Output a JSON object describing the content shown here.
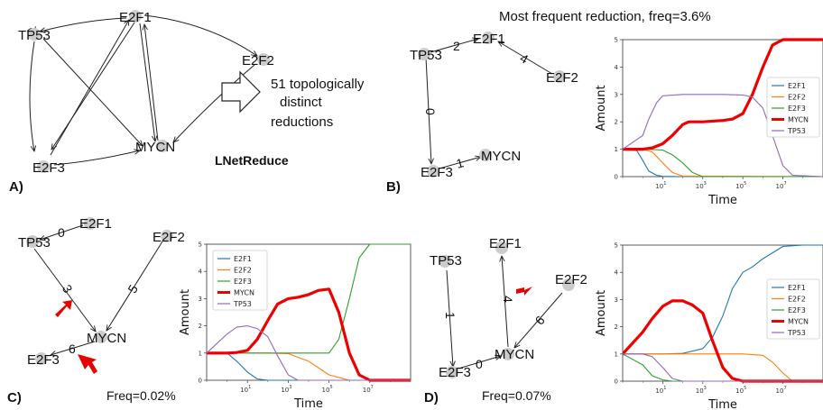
{
  "panelA": {
    "letter": "A)",
    "nodes": [
      "E2F1",
      "TP53",
      "E2F2",
      "MYCN",
      "E2F3"
    ],
    "note": "51 topologically distinct reductions",
    "tool": "LNetReduce"
  },
  "panelB": {
    "letter": "B)",
    "title": "Most frequent reduction, freq=3.6%",
    "nodes": [
      "TP53",
      "E2F1",
      "E2F2",
      "E2F3",
      "MYCN"
    ],
    "edge_labels": [
      "2",
      "4",
      "0",
      "1"
    ]
  },
  "panelC": {
    "letter": "C)",
    "freq": "Freq=0.02%",
    "nodes": [
      "TP53",
      "E2F1",
      "E2F2",
      "MYCN",
      "E2F3"
    ],
    "edge_labels": [
      "0",
      "3",
      "5",
      "6"
    ]
  },
  "panelD": {
    "letter": "D)",
    "freq": "Freq=0.07%",
    "nodes": [
      "E2F1",
      "TP53",
      "E2F2",
      "MYCN",
      "E2F3"
    ],
    "edge_labels": [
      "4",
      "1",
      "6",
      "0"
    ]
  },
  "colors": {
    "E2F1": "#1f77b4",
    "E2F2": "#ff7f0e",
    "E2F3": "#2ca02c",
    "MYCN": "#ee0000",
    "TP53": "#9467bd",
    "node": "#cccccc",
    "arrow_marker": "#e60000"
  },
  "chart_data": [
    {
      "id": "B",
      "type": "line",
      "xscale": "log",
      "xlim": [
        0.1,
        1000000000
      ],
      "ylim": [
        0,
        5
      ],
      "xlabel": "Time",
      "ylabel": "Amount",
      "xticks": [
        "10^1",
        "10^3",
        "10^5",
        "10^7"
      ],
      "yticks": [
        "0",
        "1",
        "2",
        "3",
        "4",
        "5"
      ],
      "legend": "right",
      "series": [
        {
          "name": "E2F1",
          "x": [
            0.1,
            0.5,
            1,
            2,
            5,
            10,
            100,
            1000000000.0
          ],
          "y": [
            1,
            0.95,
            0.6,
            0.2,
            0.05,
            0.01,
            0,
            0
          ]
        },
        {
          "name": "E2F2",
          "x": [
            0.1,
            1,
            3,
            10,
            30,
            100,
            1000000000.0
          ],
          "y": [
            1,
            1,
            0.9,
            0.5,
            0.15,
            0.02,
            0
          ]
        },
        {
          "name": "E2F3",
          "x": [
            0.1,
            1,
            10,
            30,
            100,
            300,
            1000,
            1000000000.0
          ],
          "y": [
            1,
            1,
            0.97,
            0.8,
            0.5,
            0.15,
            0,
            0
          ]
        },
        {
          "name": "MYCN",
          "x": [
            0.1,
            1,
            3,
            10,
            30,
            100,
            200,
            1000,
            10000,
            30000,
            100000,
            300000,
            1000000,
            3000000,
            10000000,
            1000000000.0
          ],
          "y": [
            1,
            1,
            1.05,
            1.2,
            1.5,
            1.9,
            2,
            2,
            2.05,
            2.1,
            2.3,
            3,
            4,
            4.8,
            5,
            5
          ]
        },
        {
          "name": "TP53",
          "x": [
            0.1,
            1,
            2,
            5,
            10,
            100,
            10000,
            100000,
            300000,
            1000000,
            3000000,
            10000000,
            30000000,
            1000000000.0
          ],
          "y": [
            1,
            1.5,
            2.1,
            2.7,
            2.95,
            3,
            3,
            2.98,
            2.9,
            2.5,
            1.5,
            0.4,
            0.05,
            0
          ]
        }
      ]
    },
    {
      "id": "C",
      "type": "line",
      "xscale": "log",
      "xlim": [
        0.1,
        1000000000
      ],
      "ylim": [
        0,
        5
      ],
      "xlabel": "Time",
      "ylabel": "Amount",
      "xticks": [
        "10^1",
        "10^3",
        "10^5",
        "10^7"
      ],
      "yticks": [
        "0",
        "1",
        "2",
        "3",
        "4",
        "5"
      ],
      "legend": "top-left",
      "series": [
        {
          "name": "E2F1",
          "x": [
            0.1,
            1,
            3,
            10,
            30,
            100,
            1000000000.0
          ],
          "y": [
            1,
            1,
            0.7,
            0.3,
            0.05,
            0,
            0
          ]
        },
        {
          "name": "E2F2",
          "x": [
            0.1,
            100,
            1000,
            10000,
            100000,
            1000000,
            1000000000.0
          ],
          "y": [
            1,
            1,
            0.98,
            0.7,
            0.2,
            0,
            0
          ]
        },
        {
          "name": "E2F3",
          "x": [
            0.1,
            100000,
            300000,
            1000000,
            3000000,
            10000000,
            1000000000.0
          ],
          "y": [
            1,
            1,
            1.5,
            3,
            4.5,
            5,
            5
          ]
        },
        {
          "name": "MYCN",
          "x": [
            0.1,
            1,
            3,
            10,
            30,
            100,
            300,
            1000,
            3000,
            10000,
            30000,
            100000,
            300000,
            1000000,
            3000000,
            10000000,
            1000000000.0
          ],
          "y": [
            1,
            1,
            1.02,
            1.1,
            1.5,
            2.2,
            2.8,
            3,
            3.05,
            3.15,
            3.3,
            3.35,
            2.5,
            1,
            0.2,
            0,
            0
          ]
        },
        {
          "name": "TP53",
          "x": [
            0.1,
            1,
            3,
            10,
            30,
            100,
            300,
            1000,
            3000,
            1000000000.0
          ],
          "y": [
            1,
            1.7,
            1.95,
            2,
            1.9,
            1.6,
            0.9,
            0.2,
            0,
            0
          ]
        }
      ]
    },
    {
      "id": "D",
      "type": "line",
      "xscale": "log",
      "xlim": [
        0.1,
        1000000000
      ],
      "ylim": [
        0,
        5
      ],
      "xlabel": "Time",
      "ylabel": "Amount",
      "xticks": [
        "10^1",
        "10^3",
        "10^5",
        "10^7"
      ],
      "yticks": [
        "0",
        "1",
        "2",
        "3",
        "4",
        "5"
      ],
      "legend": "right",
      "series": [
        {
          "name": "E2F1",
          "x": [
            0.1,
            10,
            100,
            1000,
            3000,
            10000,
            30000,
            100000,
            300000,
            1000000,
            10000000,
            100000000,
            1000000000.0
          ],
          "y": [
            1,
            1,
            1.02,
            1.2,
            1.6,
            2.4,
            3.4,
            4,
            4.2,
            4.5,
            4.95,
            5,
            5
          ]
        },
        {
          "name": "E2F2",
          "x": [
            0.1,
            100000,
            1000000,
            3000000,
            10000000,
            30000000,
            1000000000.0
          ],
          "y": [
            1,
            1,
            0.95,
            0.7,
            0.3,
            0,
            0
          ]
        },
        {
          "name": "E2F3",
          "x": [
            0.1,
            1,
            3,
            10,
            30,
            1000000000.0
          ],
          "y": [
            1,
            0.6,
            0.2,
            0.05,
            0,
            0
          ]
        },
        {
          "name": "MYCN",
          "x": [
            0.1,
            1,
            3,
            10,
            30,
            100,
            300,
            1000,
            3000,
            10000,
            30000,
            100000,
            300000,
            1000000000.0
          ],
          "y": [
            1,
            1.8,
            2.3,
            2.75,
            2.95,
            2.95,
            2.8,
            2.5,
            1.5,
            0.5,
            0.1,
            0,
            0,
            0
          ]
        },
        {
          "name": "TP53",
          "x": [
            0.1,
            1,
            3,
            10,
            30,
            100,
            1000000000.0
          ],
          "y": [
            1,
            1,
            0.9,
            0.5,
            0.1,
            0,
            0
          ]
        }
      ]
    }
  ]
}
